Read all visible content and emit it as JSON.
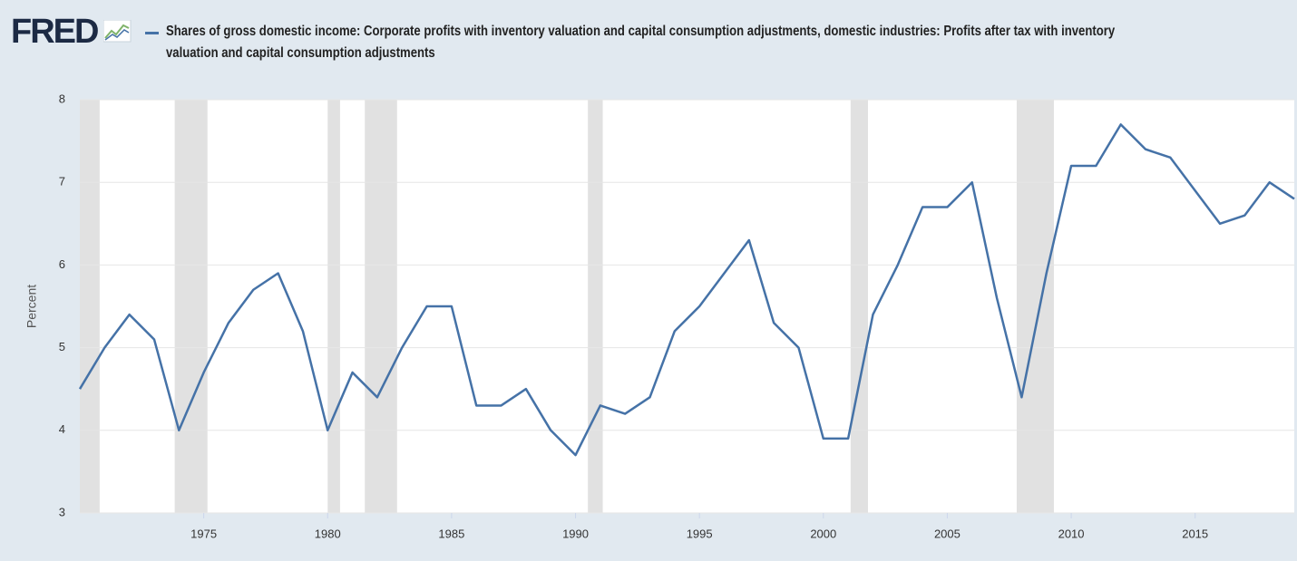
{
  "logo": "FRED",
  "chart_data": {
    "type": "line",
    "ylabel": "Percent",
    "x": [
      1970,
      1971,
      1972,
      1973,
      1974,
      1975,
      1976,
      1977,
      1978,
      1979,
      1980,
      1981,
      1982,
      1983,
      1984,
      1985,
      1986,
      1987,
      1988,
      1989,
      1990,
      1991,
      1992,
      1993,
      1994,
      1995,
      1996,
      1997,
      1998,
      1999,
      2000,
      2001,
      2002,
      2003,
      2004,
      2005,
      2006,
      2007,
      2008,
      2009,
      2010,
      2011,
      2012,
      2013,
      2014,
      2015,
      2016,
      2017,
      2018,
      2019
    ],
    "series": [
      {
        "name": "Shares of gross domestic income: Corporate profits with inventory valuation and capital consumption adjustments, domestic industries: Profits after tax with inventory valuation and capital consumption adjustments",
        "color": "#4572a7",
        "values": [
          4.5,
          5.0,
          5.4,
          5.1,
          4.0,
          4.7,
          5.3,
          5.7,
          5.9,
          5.2,
          4.0,
          4.7,
          4.4,
          5.0,
          5.5,
          5.5,
          4.3,
          4.3,
          4.5,
          4.0,
          3.7,
          4.3,
          4.2,
          4.4,
          5.2,
          5.5,
          5.9,
          6.3,
          5.3,
          5.0,
          3.9,
          3.9,
          5.4,
          6.0,
          6.7,
          6.7,
          7.0,
          5.6,
          4.4,
          5.9,
          7.2,
          7.2,
          7.7,
          7.4,
          7.3,
          6.9,
          6.5,
          6.6,
          7.0,
          6.8
        ]
      }
    ],
    "recessions": [
      [
        1970,
        1970.8
      ],
      [
        1973.83,
        1975.15
      ],
      [
        1980.0,
        1980.5
      ],
      [
        1981.5,
        1982.8
      ],
      [
        1990.5,
        1991.1
      ],
      [
        2001.1,
        2001.8
      ],
      [
        2007.8,
        2009.3
      ]
    ],
    "recession_color": "#e1e1e1",
    "xlim": [
      1970,
      2019
    ],
    "xticks": [
      1975,
      1980,
      1985,
      1990,
      1995,
      2000,
      2005,
      2010,
      2015
    ],
    "ylim": [
      3,
      8
    ],
    "yticks": [
      3,
      4,
      5,
      6,
      7,
      8
    ],
    "grid": true
  }
}
